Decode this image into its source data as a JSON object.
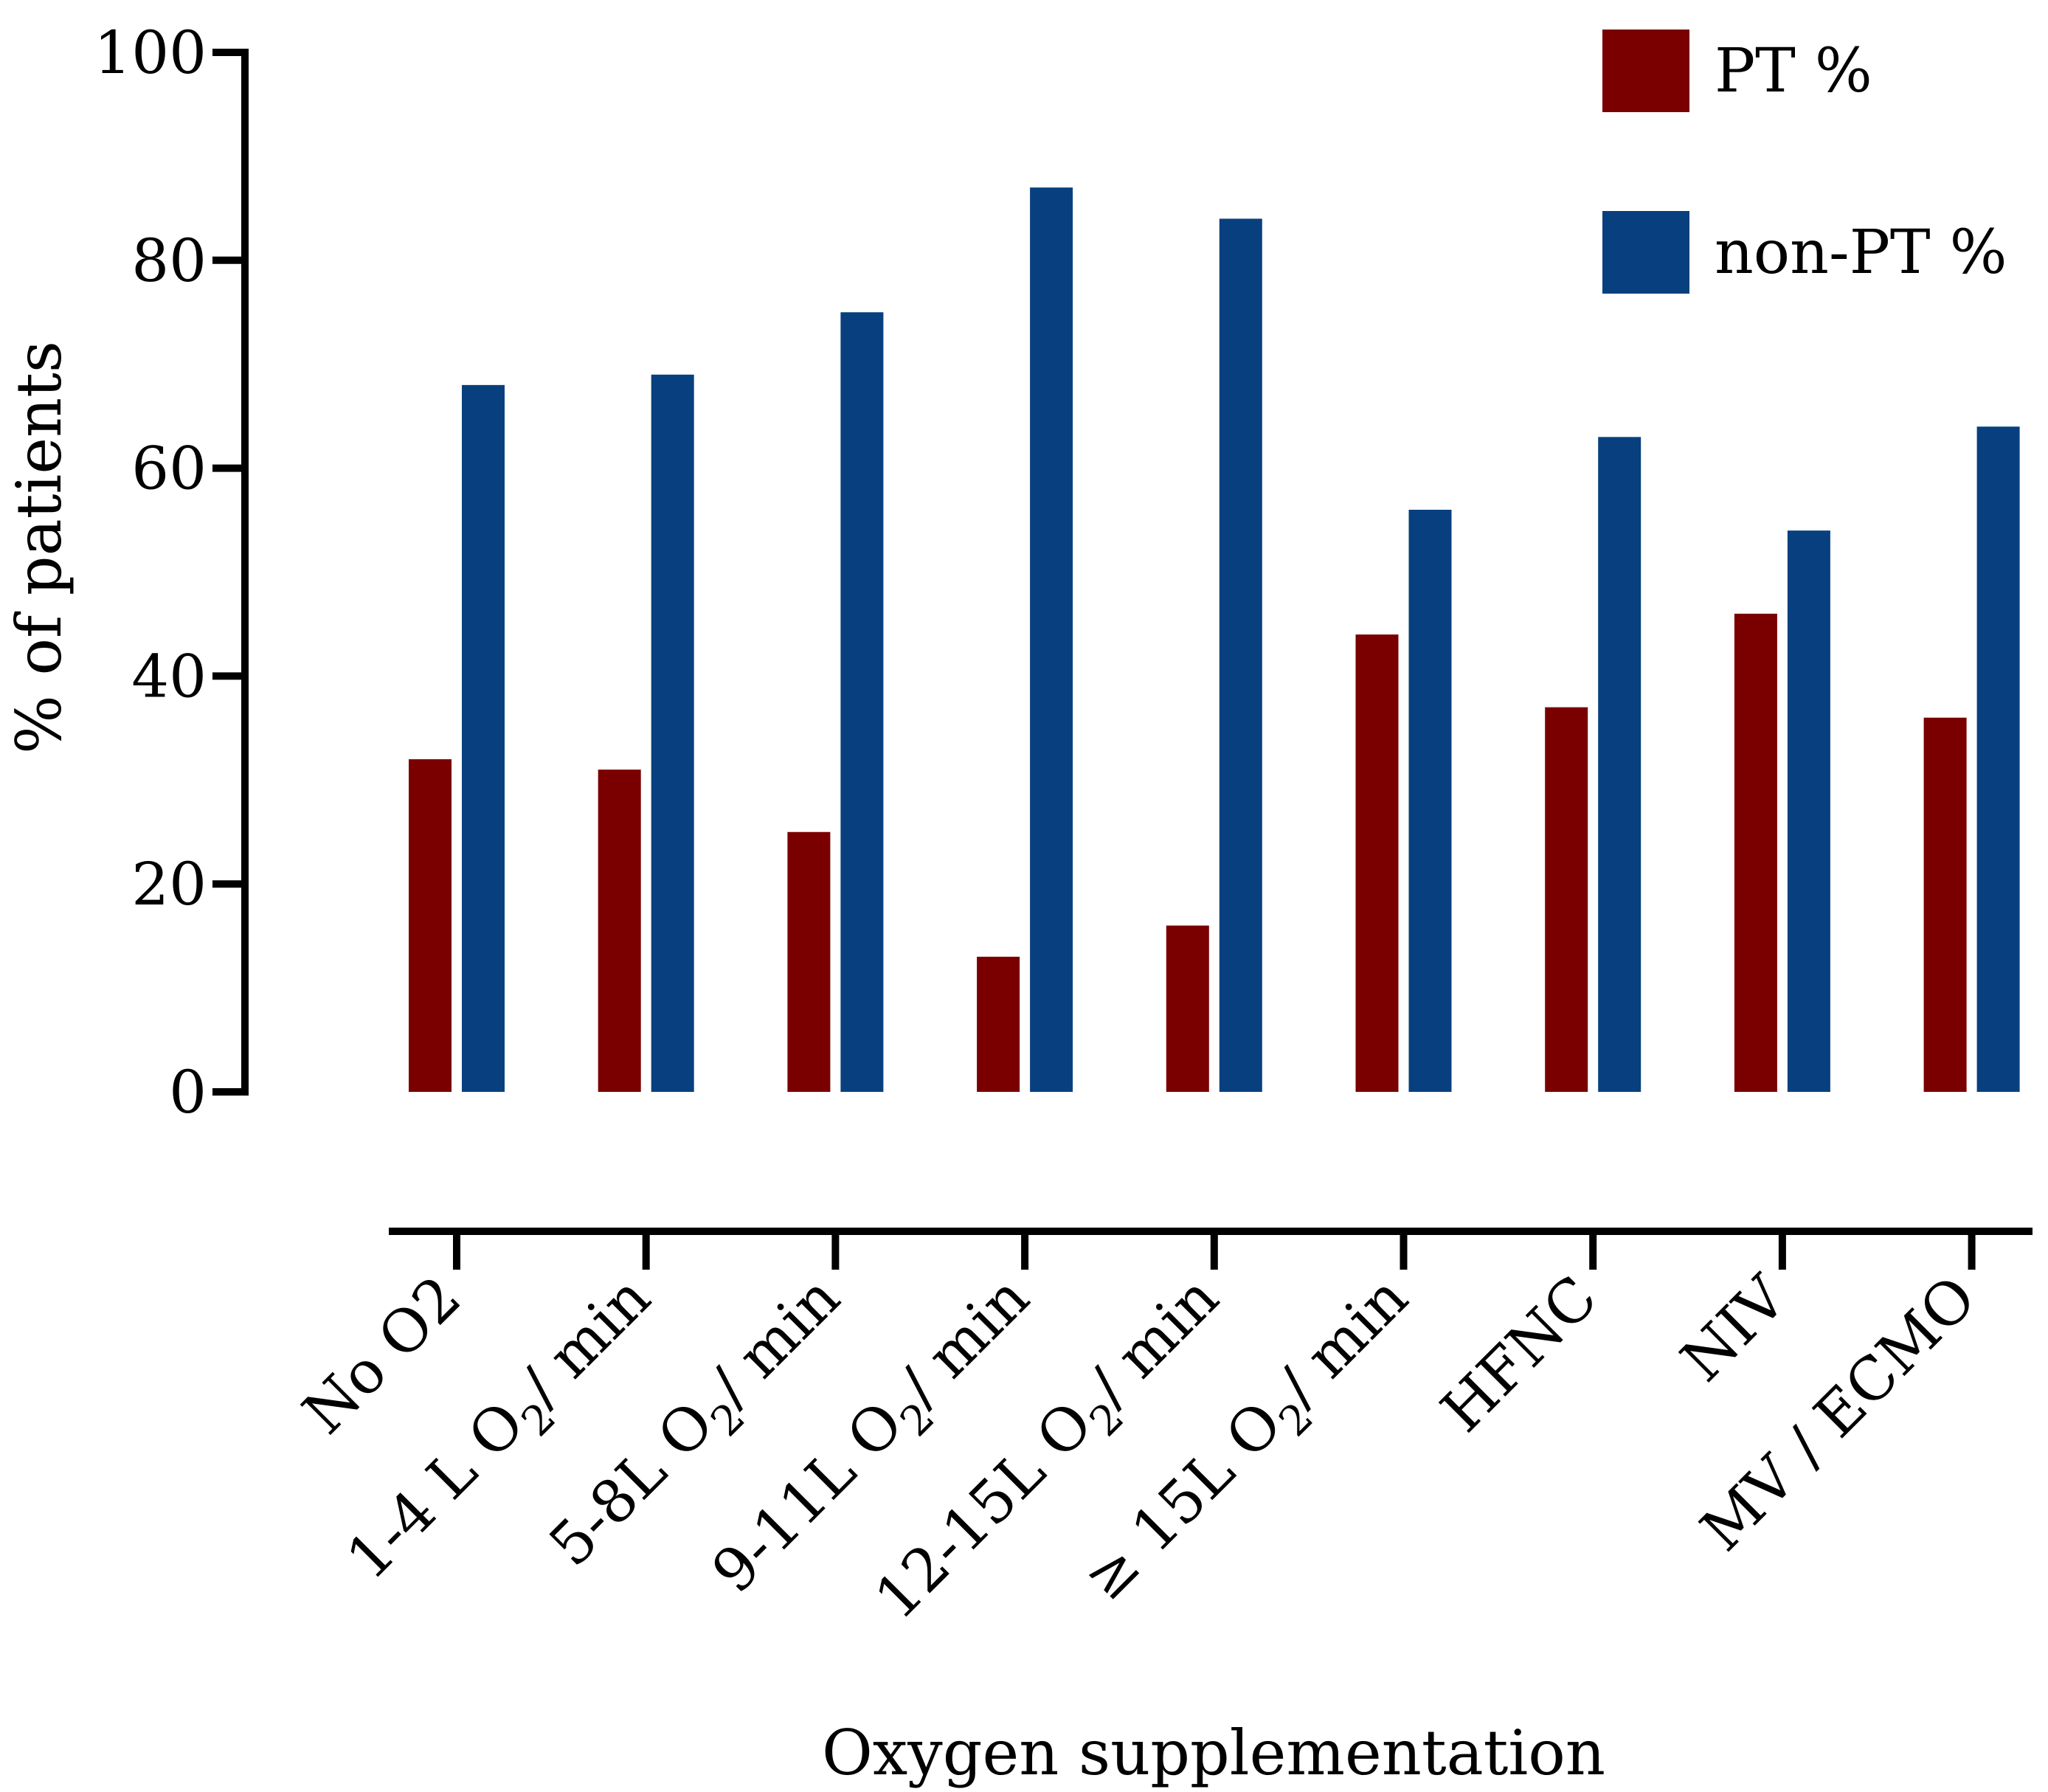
{
  "chart_data": {
    "type": "bar",
    "title": "",
    "xlabel": "Oxygen supplementation",
    "ylabel": "% of patients",
    "ylim": [
      0,
      100
    ],
    "yticks": [
      0,
      20,
      40,
      60,
      80,
      100
    ],
    "grid": false,
    "legend_position": "top-right",
    "categories": [
      {
        "label": "No O2"
      },
      {
        "label": "1-4 L O",
        "sub": "2",
        "after": "/ min"
      },
      {
        "label": "5-8L O",
        "sub": "2",
        "after": "/ min"
      },
      {
        "label": "9-11L O",
        "sub": "2",
        "after": "/ min"
      },
      {
        "label": "12-15L O",
        "sub": "2",
        "after": "/ min"
      },
      {
        "label": "≥ 15L O",
        "sub": "2",
        "after": "/ min"
      },
      {
        "label": "HFNC"
      },
      {
        "label": "NIV"
      },
      {
        "label": "MV /  ECMO"
      }
    ],
    "series": [
      {
        "name": "PT %",
        "color": "#7a0000",
        "values": [
          32,
          31,
          25,
          13,
          16,
          44,
          37,
          46,
          36
        ]
      },
      {
        "name": "non-PT %",
        "color": "#08407f",
        "values": [
          68,
          69,
          75,
          87,
          84,
          56,
          63,
          54,
          64
        ]
      }
    ]
  }
}
